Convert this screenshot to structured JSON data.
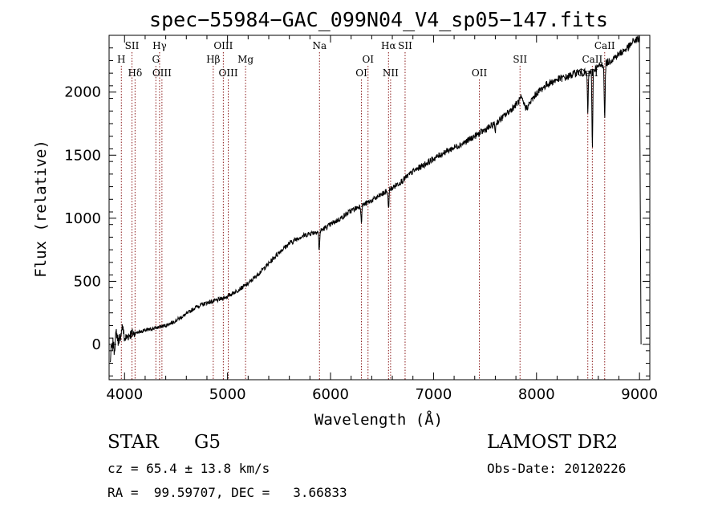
{
  "chart_data": {
    "type": "line",
    "title": "spec−55984−GAC_099N04_V4_sp05−147.fits",
    "xlabel": "Wavelength (Å)",
    "ylabel": "Flux (relative)",
    "xlim": [
      3850,
      9100
    ],
    "ylim": [
      -280,
      2450
    ],
    "x_ticks": [
      4000,
      5000,
      6000,
      7000,
      8000,
      9000
    ],
    "y_ticks": [
      0,
      500,
      1000,
      1500,
      2000
    ],
    "grid": false,
    "line_color": "#000000",
    "marker_color": "#8b1a1a",
    "spectrum": {
      "x": [
        3860,
        3880,
        3900,
        3920,
        3940,
        3960,
        3980,
        4000,
        4050,
        4100,
        4150,
        4200,
        4250,
        4300,
        4350,
        4400,
        4450,
        4500,
        4600,
        4700,
        4800,
        4900,
        5000,
        5100,
        5200,
        5300,
        5400,
        5500,
        5600,
        5700,
        5800,
        5900,
        6000,
        6100,
        6200,
        6300,
        6400,
        6500,
        6600,
        6700,
        6800,
        6900,
        7000,
        7100,
        7200,
        7300,
        7400,
        7500,
        7600,
        7700,
        7800,
        7850,
        7900,
        8000,
        8100,
        8200,
        8300,
        8400,
        8500,
        8600,
        8700,
        8800,
        8900,
        8950,
        9000
      ],
      "y": [
        -150,
        80,
        -50,
        100,
        20,
        120,
        150,
        40,
        80,
        90,
        100,
        110,
        120,
        130,
        140,
        150,
        170,
        190,
        240,
        300,
        330,
        350,
        380,
        430,
        480,
        560,
        640,
        730,
        800,
        850,
        880,
        900,
        950,
        1000,
        1060,
        1100,
        1140,
        1190,
        1240,
        1300,
        1370,
        1420,
        1470,
        1520,
        1560,
        1600,
        1650,
        1700,
        1750,
        1820,
        1900,
        1950,
        1870,
        1990,
        2060,
        2100,
        2120,
        2160,
        2150,
        2200,
        2240,
        2300,
        2360,
        2410,
        2420
      ]
    },
    "absorption_dips": [
      {
        "x": 5890,
        "depth": 160
      },
      {
        "x": 6300,
        "depth": 120
      },
      {
        "x": 6563,
        "depth": 140
      },
      {
        "x": 7600,
        "depth": 60
      },
      {
        "x": 8498,
        "depth": 300
      },
      {
        "x": 8542,
        "depth": 600
      },
      {
        "x": 8662,
        "depth": 450
      },
      {
        "x": 3880,
        "depth": 100
      },
      {
        "x": 3960,
        "depth": 120
      }
    ],
    "spectral_lines": [
      {
        "name": "H",
        "x": 3969,
        "row": 2
      },
      {
        "name": "SII",
        "x": 4072,
        "row": 1
      },
      {
        "name": "Hδ",
        "x": 4102,
        "row": 3
      },
      {
        "name": "Hγ",
        "x": 4340,
        "row": 1
      },
      {
        "name": "G",
        "x": 4304,
        "row": 2
      },
      {
        "name": "OIII",
        "x": 4363,
        "row": 3
      },
      {
        "name": "OIII",
        "x": 4959,
        "row": 1
      },
      {
        "name": "Hβ",
        "x": 4861,
        "row": 2
      },
      {
        "name": "OIII",
        "x": 5007,
        "row": 3
      },
      {
        "name": "Mg",
        "x": 5175,
        "row": 2
      },
      {
        "name": "Na",
        "x": 5893,
        "row": 1
      },
      {
        "name": "OI",
        "x": 6364,
        "row": 2
      },
      {
        "name": "OI",
        "x": 6300,
        "row": 3
      },
      {
        "name": "Hα",
        "x": 6563,
        "row": 1
      },
      {
        "name": "SII",
        "x": 6724,
        "row": 1
      },
      {
        "name": "NII",
        "x": 6583,
        "row": 3
      },
      {
        "name": "OII",
        "x": 7445,
        "row": 3
      },
      {
        "name": "SII",
        "x": 7840,
        "row": 2
      },
      {
        "name": "CaII",
        "x": 8662,
        "row": 1
      },
      {
        "name": "CaII",
        "x": 8542,
        "row": 2
      },
      {
        "name": "CaII",
        "x": 8498,
        "row": 3
      }
    ]
  },
  "info": {
    "object_class": "STAR",
    "subclass": "G5",
    "survey": "LAMOST DR2",
    "redshift_line": "cz = 65.4 ± 13.8 km/s",
    "obs_date_line": "Obs-Date: 20120226",
    "coords_line": "RA =  99.59707, DEC =   3.66833"
  }
}
